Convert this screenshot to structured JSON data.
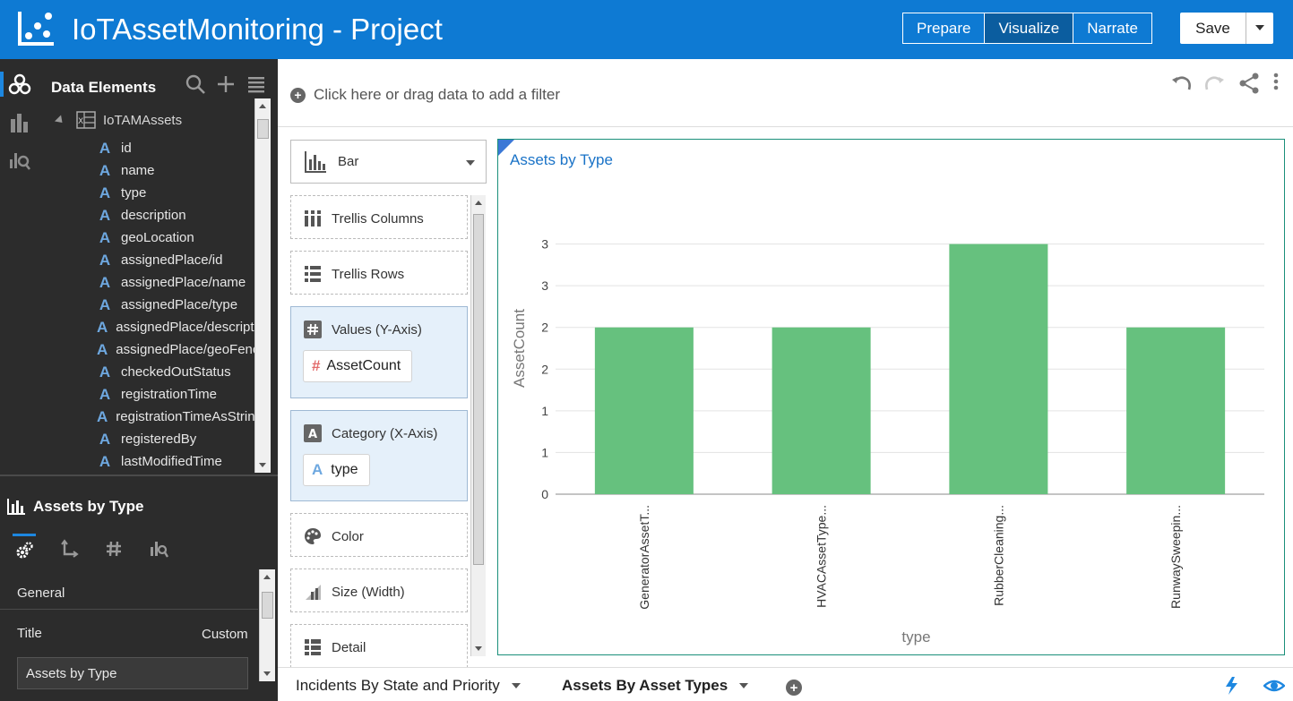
{
  "header": {
    "title": "IoTAssetMonitoring - Project",
    "modes": [
      {
        "label": "Prepare",
        "active": false
      },
      {
        "label": "Visualize",
        "active": true
      },
      {
        "label": "Narrate",
        "active": false
      }
    ],
    "save_label": "Save"
  },
  "data_elements": {
    "header": "Data Elements",
    "dataset_name": "IoTAMAssets",
    "items": [
      "id",
      "name",
      "type",
      "description",
      "geoLocation",
      "assignedPlace/id",
      "assignedPlace/name",
      "assignedPlace/type",
      "assignedPlace/description",
      "assignedPlace/geoFence",
      "checkedOutStatus",
      "registrationTime",
      "registrationTimeAsString",
      "registeredBy",
      "lastModifiedTime"
    ]
  },
  "properties": {
    "viz_title": "Assets by Type",
    "section": "General",
    "title_label": "Title",
    "title_mode": "Custom",
    "title_value": "Assets by Type"
  },
  "filter": {
    "placeholder": "Click here or drag data to add a filter"
  },
  "grammar": {
    "chart_type": "Bar",
    "zones": {
      "trellis_columns": "Trellis Columns",
      "trellis_rows": "Trellis Rows",
      "values": "Values (Y-Axis)",
      "values_item": "AssetCount",
      "category": "Category (X-Axis)",
      "category_item": "type",
      "color": "Color",
      "size": "Size (Width)",
      "detail": "Detail"
    }
  },
  "chart_data": {
    "type": "bar",
    "title": "Assets by Type",
    "categories": [
      "GeneratorAssetT...",
      "HVACAssetType...",
      "RubberCleaning...",
      "RunwaySweepin..."
    ],
    "series": [
      {
        "values": [
          2,
          2,
          3,
          2
        ]
      }
    ],
    "xlabel": "type",
    "ylabel": "AssetCount",
    "ylim": [
      0,
      3.5
    ],
    "y_tick_labels": [
      "0",
      "1",
      "1",
      "2",
      "2",
      "3",
      "3"
    ],
    "grid": true,
    "bar_color": "#66c17e"
  },
  "canvas_tabs": [
    {
      "label": "Incidents By State and Priority",
      "active": false
    },
    {
      "label": "Assets By Asset Types",
      "active": true
    }
  ],
  "colors": {
    "header_bg": "#0e7ad3",
    "panel_bg": "#2c2c2c",
    "accent": "#1d87e0",
    "bar": "#66c17e"
  }
}
